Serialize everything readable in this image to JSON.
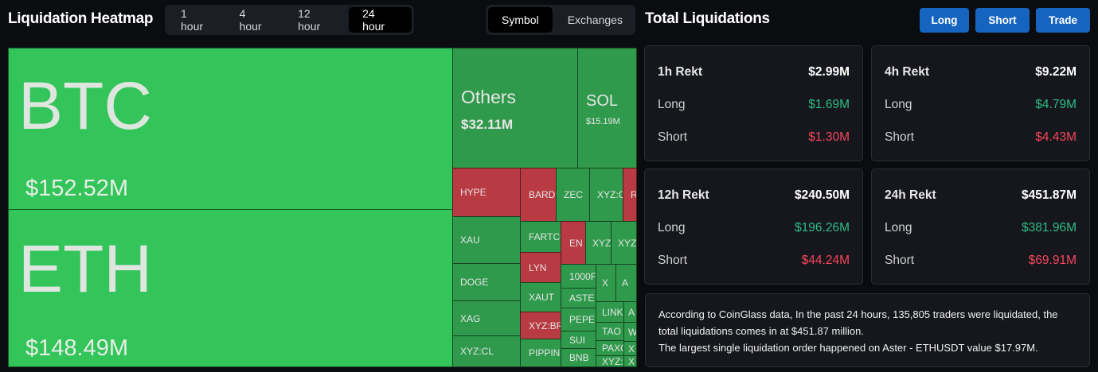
{
  "header": {
    "title": "Liquidation Heatmap",
    "time_options": [
      "1 hour",
      "4 hour",
      "12 hour",
      "24 hour"
    ],
    "time_selected": "24 hour",
    "view_options": [
      "Symbol",
      "Exchanges"
    ],
    "view_selected": "Symbol"
  },
  "heatmap": {
    "btc": {
      "symbol": "BTC",
      "value": "$152.52M"
    },
    "eth": {
      "symbol": "ETH",
      "value": "$148.49M"
    },
    "others": {
      "symbol": "Others",
      "value": "$32.11M"
    },
    "sol": {
      "symbol": "SOL",
      "value": "$15.19M"
    },
    "small": [
      "HYPE",
      "BARD",
      "ZEC",
      "XYZ:C",
      "R",
      "XAU",
      "FARTCO",
      "EN",
      "XYZ",
      "XYZ",
      "LYN",
      "DOGE",
      "1000F",
      "X",
      "A",
      "XAUT",
      "ASTE",
      "XAG",
      "LINK",
      "A",
      "XYZ:BR",
      "PEPE",
      "TAO",
      "W",
      "SUI",
      "PAXG",
      "X",
      "XYZ:CL",
      "PIPPIN",
      "BNB",
      "XYZ:",
      "X"
    ]
  },
  "right": {
    "title": "Total Liquidations",
    "buttons": {
      "long": "Long",
      "short": "Short",
      "trade": "Trade"
    },
    "cards": [
      {
        "label": "1h Rekt",
        "total": "$2.99M",
        "long_label": "Long",
        "long": "$1.69M",
        "short_label": "Short",
        "short": "$1.30M"
      },
      {
        "label": "4h Rekt",
        "total": "$9.22M",
        "long_label": "Long",
        "long": "$4.79M",
        "short_label": "Short",
        "short": "$4.43M"
      },
      {
        "label": "12h Rekt",
        "total": "$240.50M",
        "long_label": "Long",
        "long": "$196.26M",
        "short_label": "Short",
        "short": "$44.24M"
      },
      {
        "label": "24h Rekt",
        "total": "$451.87M",
        "long_label": "Long",
        "long": "$381.96M",
        "short_label": "Short",
        "short": "$69.91M"
      }
    ],
    "info_line1": "According to CoinGlass data, In the past 24 hours, 135,805 traders were liquidated, the total liquidations comes in at $451.87 million.",
    "info_line2": "The largest single liquidation order happened on Aster - ETHUSDT value $17.97M."
  },
  "colors": {
    "long": "#2ebd85",
    "short": "#f6465d",
    "accent": "#1565c0",
    "green_tile": "#33c45a",
    "red_tile": "#b83a42"
  }
}
